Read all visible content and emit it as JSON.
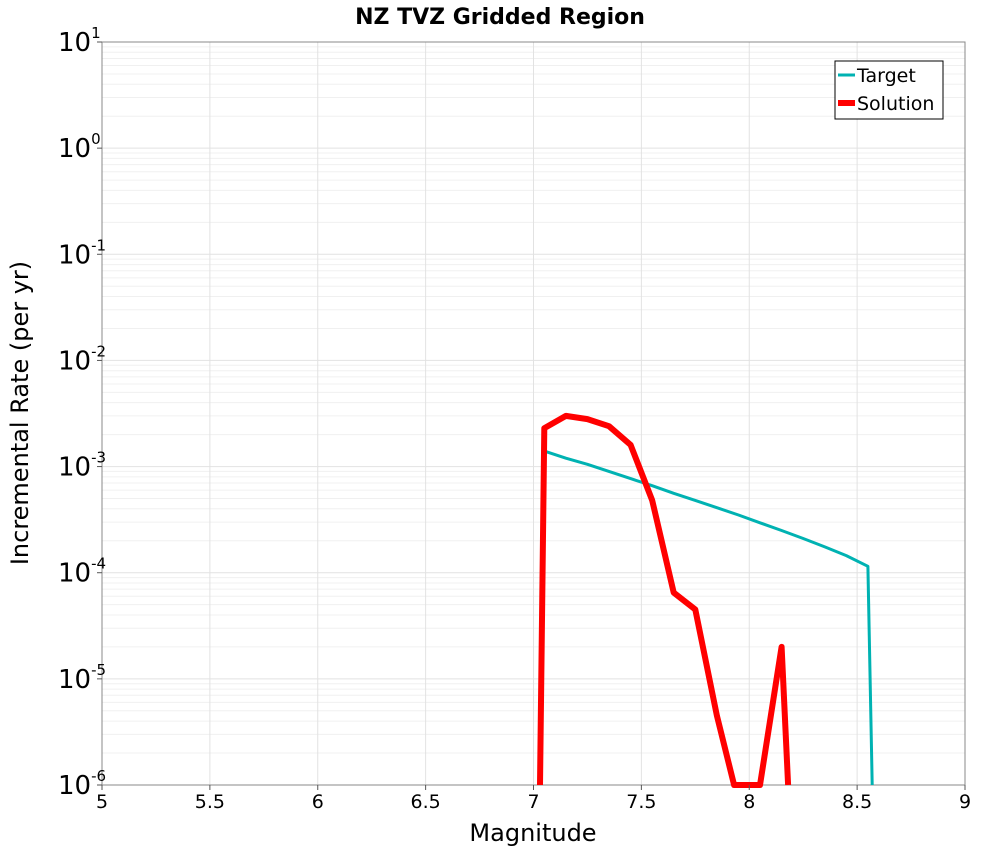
{
  "chart_data": {
    "type": "line",
    "title": "NZ TVZ Gridded Region",
    "xlabel": "Magnitude",
    "ylabel": "Incremental Rate (per yr)",
    "xlim": [
      5,
      9
    ],
    "ylim": [
      1e-06,
      10
    ],
    "yscale": "log",
    "grid": true,
    "legend_position": "top-right",
    "x_ticks": [
      "5",
      "5.5",
      "6",
      "6.5",
      "7",
      "7.5",
      "8",
      "8.5",
      "9"
    ],
    "y_ticks": [
      {
        "base": "10",
        "exp": "-6",
        "value": 1e-06
      },
      {
        "base": "10",
        "exp": "-5",
        "value": 1e-05
      },
      {
        "base": "10",
        "exp": "-4",
        "value": 0.0001
      },
      {
        "base": "10",
        "exp": "-3",
        "value": 0.001
      },
      {
        "base": "10",
        "exp": "-2",
        "value": 0.01
      },
      {
        "base": "10",
        "exp": "-1",
        "value": 0.1
      },
      {
        "base": "10",
        "exp": "0",
        "value": 1
      },
      {
        "base": "10",
        "exp": "1",
        "value": 10
      }
    ],
    "series": [
      {
        "name": "Target",
        "color": "#00b2b2",
        "points": [
          [
            7.05,
            0.0014
          ],
          [
            7.15,
            0.0012
          ],
          [
            7.25,
            0.00105
          ],
          [
            7.35,
            0.0009
          ],
          [
            7.45,
            0.00077
          ],
          [
            7.55,
            0.00066
          ],
          [
            7.65,
            0.00056
          ],
          [
            7.75,
            0.00048
          ],
          [
            7.85,
            0.00041
          ],
          [
            7.95,
            0.00035
          ],
          [
            8.05,
            0.000295
          ],
          [
            8.15,
            0.00025
          ],
          [
            8.25,
            0.00021
          ],
          [
            8.35,
            0.000175
          ],
          [
            8.45,
            0.000145
          ],
          [
            8.55,
            0.000115
          ],
          [
            8.57,
            1e-06
          ]
        ]
      },
      {
        "name": "Solution",
        "color": "#ff0000",
        "points": [
          [
            7.03,
            1e-06
          ],
          [
            7.05,
            0.0023
          ],
          [
            7.15,
            0.003
          ],
          [
            7.25,
            0.0028
          ],
          [
            7.35,
            0.0024
          ],
          [
            7.45,
            0.0016
          ],
          [
            7.55,
            0.00048
          ],
          [
            7.65,
            6.5e-05
          ],
          [
            7.75,
            4.5e-05
          ],
          [
            7.85,
            4.5e-06
          ],
          [
            7.93,
            1e-06
          ],
          [
            8.05,
            1e-06
          ],
          [
            8.15,
            2e-05
          ],
          [
            8.18,
            1e-06
          ]
        ]
      }
    ]
  }
}
